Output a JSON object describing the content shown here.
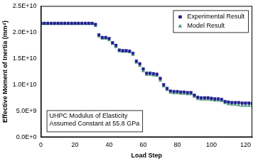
{
  "chart_data": {
    "type": "scatter",
    "x_label": "Load Step",
    "y_label": "Effective Moment of Inertia (mm⁴)",
    "annotation": [
      "UHPC Modulus of Elasticity",
      "Assumed Constant at 55.8 GPa"
    ],
    "x": [
      0,
      2,
      4,
      6,
      8,
      10,
      12,
      14,
      16,
      18,
      20,
      22,
      24,
      26,
      28,
      30,
      32,
      34,
      36,
      38,
      40,
      42,
      44,
      46,
      48,
      50,
      52,
      54,
      56,
      58,
      60,
      62,
      64,
      66,
      68,
      70,
      72,
      74,
      76,
      78,
      80,
      82,
      84,
      86,
      88,
      90,
      92,
      94,
      96,
      98,
      100,
      102,
      104,
      106,
      108,
      110,
      112,
      114,
      116,
      118,
      120,
      122,
      124
    ],
    "series": [
      {
        "name": "Experimental Result",
        "color": "#1f1f8c",
        "marker": "square",
        "values": [
          21700000000.0,
          21700000000.0,
          21700000000.0,
          21700000000.0,
          21700000000.0,
          21700000000.0,
          21700000000.0,
          21700000000.0,
          21700000000.0,
          21700000000.0,
          21700000000.0,
          21700000000.0,
          21700000000.0,
          21700000000.0,
          21700000000.0,
          21700000000.0,
          21500000000.0,
          19500000000.0,
          19000000000.0,
          19000000000.0,
          18800000000.0,
          18000000000.0,
          17500000000.0,
          16600000000.0,
          16500000000.0,
          16500000000.0,
          16400000000.0,
          16000000000.0,
          14500000000.0,
          14000000000.0,
          13000000000.0,
          12200000000.0,
          12200000000.0,
          12100000000.0,
          12000000000.0,
          11200000000.0,
          10000000000.0,
          9300000000.0,
          8800000000.0,
          8700000000.0,
          8700000000.0,
          8600000000.0,
          8600000000.0,
          8500000000.0,
          8500000000.0,
          8000000000.0,
          7600000000.0,
          7500000000.0,
          7500000000.0,
          7500000000.0,
          7400000000.0,
          7300000000.0,
          7300000000.0,
          7200000000.0,
          6800000000.0,
          6700000000.0,
          6600000000.0,
          6600000000.0,
          6600000000.0,
          6500000000.0,
          6500000000.0,
          6500000000.0,
          6400000000.0
        ]
      },
      {
        "name": "Model Result",
        "color": "#4f9a7c",
        "marker": "triangle",
        "values": [
          21600000000.0,
          21600000000.0,
          21600000000.0,
          21600000000.0,
          21600000000.0,
          21600000000.0,
          21600000000.0,
          21600000000.0,
          21600000000.0,
          21600000000.0,
          21600000000.0,
          21600000000.0,
          21600000000.0,
          21600000000.0,
          21600000000.0,
          21600000000.0,
          21200000000.0,
          19200000000.0,
          18800000000.0,
          18800000000.0,
          18500000000.0,
          17800000000.0,
          17200000000.0,
          16400000000.0,
          16300000000.0,
          16300000000.0,
          16200000000.0,
          15700000000.0,
          14200000000.0,
          13600000000.0,
          12600000000.0,
          11900000000.0,
          11900000000.0,
          11800000000.0,
          11700000000.0,
          10800000000.0,
          9700000000.0,
          9000000000.0,
          8500000000.0,
          8400000000.0,
          8400000000.0,
          8300000000.0,
          8300000000.0,
          8200000000.0,
          8200000000.0,
          7700000000.0,
          7300000000.0,
          7200000000.0,
          7200000000.0,
          7200000000.0,
          7100000000.0,
          7000000000.0,
          7000000000.0,
          6900000000.0,
          6500000000.0,
          6300000000.0,
          6200000000.0,
          6200000000.0,
          6100000000.0,
          6000000000.0,
          6000000000.0,
          6000000000.0,
          5900000000.0
        ]
      }
    ],
    "xlim": [
      0,
      124
    ],
    "xticks": [
      0,
      20,
      40,
      60,
      80,
      100,
      120
    ],
    "ylim": [
      0,
      25000000000.0
    ],
    "yticks": [
      {
        "value": 0,
        "label": "0.0E+0"
      },
      {
        "value": 5000000000.0,
        "label": "5.0E+9"
      },
      {
        "value": 10000000000.0,
        "label": "1.0E+10"
      },
      {
        "value": 15000000000.0,
        "label": "1.5E+10"
      },
      {
        "value": 20000000000.0,
        "label": "2.0E+10"
      },
      {
        "value": 25000000000.0,
        "label": "2.5E+10"
      }
    ],
    "grid": false,
    "legend": "top-right"
  }
}
